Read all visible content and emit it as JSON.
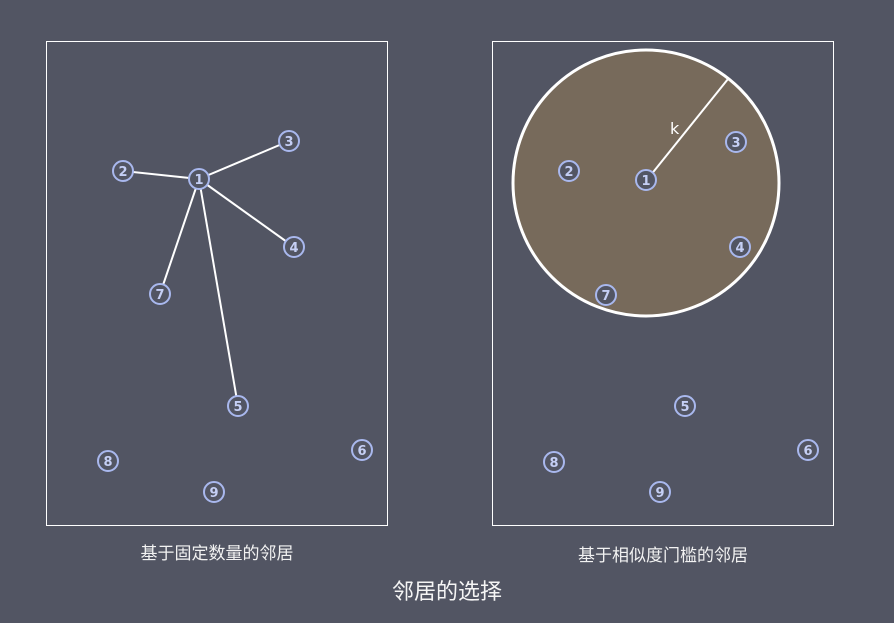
{
  "colors": {
    "background": "#525563",
    "panel_border": "#ffffff",
    "edge": "#ffffff",
    "node_fill": "#525563",
    "node_stroke": "#a9b8ee",
    "node_text": "#c5cff5",
    "circle_fill": "#776a5b",
    "circle_stroke": "#ffffff"
  },
  "title": "邻居的选择",
  "left_panel": {
    "caption": "基于固定数量的邻居",
    "center_node": "1",
    "nodes": [
      "1",
      "2",
      "3",
      "4",
      "5",
      "6",
      "7",
      "8",
      "9"
    ],
    "neighbors": [
      "2",
      "3",
      "4",
      "5",
      "7"
    ]
  },
  "right_panel": {
    "caption": "基于相似度门槛的邻居",
    "center_node": "1",
    "radius_label": "k",
    "nodes": [
      "1",
      "2",
      "3",
      "4",
      "5",
      "6",
      "7",
      "8",
      "9"
    ],
    "nodes_inside_threshold": [
      "1",
      "2",
      "3",
      "4",
      "7"
    ]
  }
}
